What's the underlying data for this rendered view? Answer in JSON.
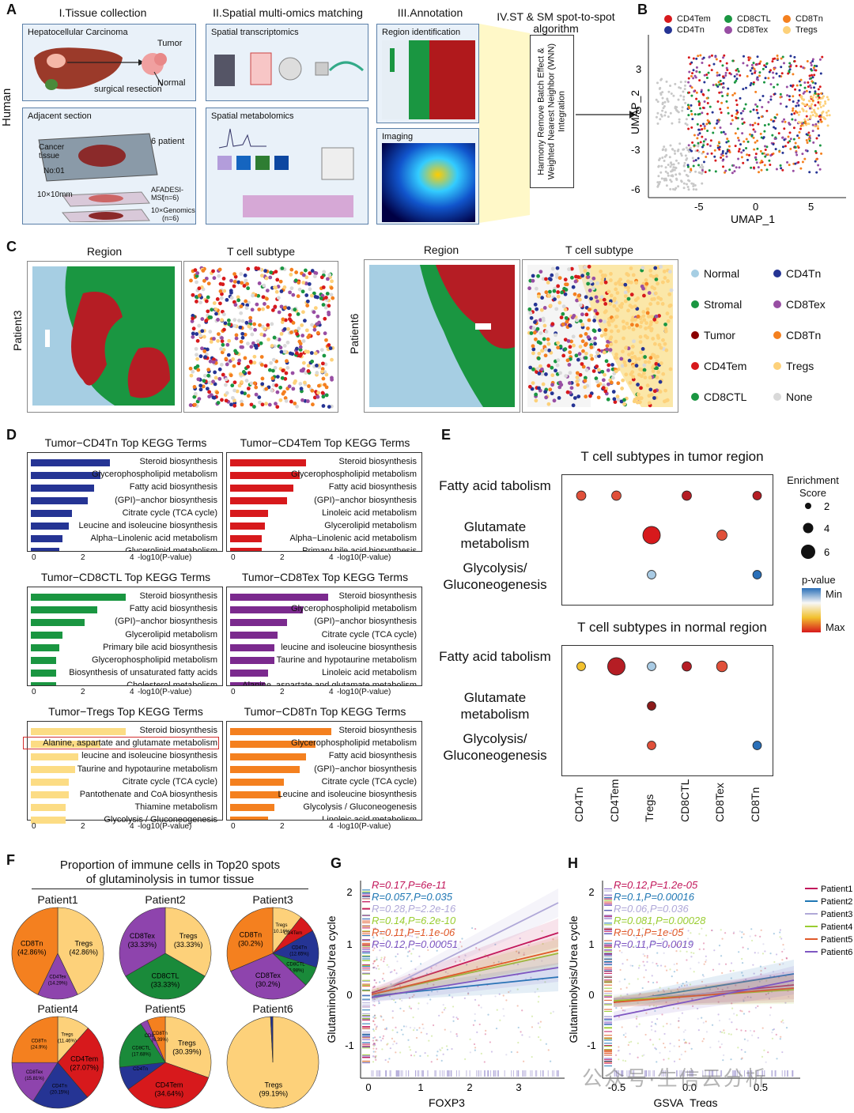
{
  "panelA": {
    "label": "A",
    "human": "Human",
    "s1": "I.Tissue collection",
    "s2": "II.Spatial multi-omics matching",
    "s3": "III.Annotation",
    "s4": "IV.ST & SM spot-to-spot algorithm",
    "hcc": "Hepatocellular Carcinoma",
    "tumor": "Tumor",
    "normal": "Normal",
    "resection": "surgical resection",
    "adjacent": "Adjacent section",
    "cancer_tissue": "Cancer tissue",
    "no01": "No:01",
    "patients": "6 patient",
    "size": "10×10mm",
    "afadesi": "AFADESI-MSI",
    "n6a": "(n=6)",
    "genomics": "10×Genomics",
    "n6b": "(n=6)",
    "spatial_tx": "Spatial transcriptomics",
    "spatial_met": "Spatial metabolomics",
    "region_id": "Region identification",
    "imaging": "Imaging",
    "harmony": "Harmony Remove Batch Effect & Weighted Nearest Neighbor (WNN) Integration"
  },
  "panelB": {
    "label": "B",
    "legend": [
      "CD4Tem",
      "CD8CTL",
      "CD8Tn",
      "CD4Tn",
      "CD8Tex",
      "Tregs"
    ],
    "colors": [
      "#d7191c",
      "#1a9641",
      "#f4801f",
      "#253494",
      "#984ea3",
      "#fdd17a"
    ],
    "xlabel": "UMAP_1",
    "ylabel": "UMAP_2",
    "xticks": [
      "-5",
      "0",
      "5"
    ],
    "yticks": [
      "3",
      "0",
      "-3",
      "-6"
    ]
  },
  "panelC": {
    "label": "C",
    "region": "Region",
    "tcell": "T cell subtype",
    "patient3": "Patient3",
    "patient6": "Patient6",
    "legend": [
      "Normal",
      "CD4Tn",
      "Stromal",
      "CD8Tex",
      "Tumor",
      "CD8Tn",
      "CD4Tem",
      "Tregs",
      "CD8CTL",
      "None"
    ],
    "legend_colors": [
      "#a6cee3",
      "#253494",
      "#1a9641",
      "#984ea3",
      "#8b0000",
      "#f4801f",
      "#d7191c",
      "#fdd17a",
      "#1a9641",
      "#d9d9d9"
    ]
  },
  "panelD": {
    "label": "D",
    "axis_label": "-log10(P-value)",
    "charts": [
      {
        "title": "Tumor−CD4Tn Top KEGG Terms",
        "color": "#253494",
        "ticks": [
          "0",
          "2",
          "4"
        ],
        "max": 5,
        "terms": [
          "Steroid biosynthesis",
          "Glycerophospholipid metabolism",
          "Fatty acid biosynthesis",
          "(GPI)−anchor biosynthesis",
          "Citrate cycle (TCA cycle)",
          "Leucine and isoleucine biosynthesis",
          "Alpha−Linolenic acid metabolism",
          "Glycerolipid metabolism"
        ],
        "values": [
          2.5,
          2.2,
          2.0,
          1.8,
          1.3,
          1.2,
          1.0,
          0.9
        ]
      },
      {
        "title": "Tumor−CD4Tem Top KEGG Terms",
        "color": "#d7191c",
        "ticks": [
          "0",
          "2",
          "4"
        ],
        "max": 5,
        "terms": [
          "Steroid biosynthesis",
          "Glycerophospholipid metabolism",
          "Fatty acid biosynthesis",
          "(GPI)−anchor biosynthesis",
          "Linoleic acid metabolism",
          "Glycerolipid metabolism",
          "Alpha−Linolenic acid metabolism",
          "Primary bile acid biosynthesis"
        ],
        "values": [
          2.4,
          2.2,
          2.0,
          1.8,
          1.2,
          1.1,
          1.0,
          1.0
        ]
      },
      {
        "title": "Tumor−CD8CTL Top KEGG Terms",
        "color": "#1a9641",
        "ticks": [
          "0",
          "2",
          "4"
        ],
        "max": 5,
        "terms": [
          "Steroid biosynthesis",
          "Fatty acid biosynthesis",
          "(GPI)−anchor biosynthesis",
          "Glycerolipid metabolism",
          "Primary bile acid biosynthesis",
          "Glycerophospholipid metabolism",
          "Biosynthesis of unsaturated fatty acids",
          "Cholesterol metabolism"
        ],
        "values": [
          3.0,
          2.1,
          1.7,
          1.0,
          0.9,
          0.8,
          0.8,
          0.8
        ]
      },
      {
        "title": "Tumor−CD8Tex Top KEGG Terms",
        "color": "#7b2a8e",
        "ticks": [
          "0",
          "2",
          "4"
        ],
        "max": 5,
        "terms": [
          "Steroid biosynthesis",
          "Glycerophospholipid metabolism",
          "(GPI)−anchor biosynthesis",
          "Citrate cycle (TCA cycle)",
          "leucine and isoleucine biosynthesis",
          "Taurine and hypotaurine metabolism",
          "Linoleic acid metabolism",
          "Alanine, aspartate and glutamate metabolism"
        ],
        "values": [
          3.1,
          2.3,
          1.8,
          1.5,
          1.4,
          1.4,
          1.2,
          1.1
        ]
      },
      {
        "title": "Tumor−Tregs  Top KEGG Terms",
        "color": "#fcdc84",
        "ticks": [
          "0",
          "2",
          "4"
        ],
        "max": 5,
        "terms": [
          "Steroid biosynthesis",
          "Alanine, aspartate and glutamate metabolism",
          "leucine and isoleucine biosynthesis",
          "Taurine and hypotaurine metabolism",
          "Citrate cycle (TCA cycle)",
          "Pantothenate and CoA biosynthesis",
          "Thiamine metabolism",
          "Glycolysis / Gluconeogenesis"
        ],
        "values": [
          3.0,
          2.2,
          1.5,
          1.4,
          1.2,
          1.2,
          1.1,
          1.1
        ]
      },
      {
        "title": "Tumor−CD8Tn Top KEGG Terms",
        "color": "#f4801f",
        "ticks": [
          "0",
          "2",
          "4"
        ],
        "max": 5,
        "terms": [
          "Steroid biosynthesis",
          "Glycerophospholipid metabolism",
          "Fatty acid biosynthesis",
          "(GPI)−anchor biosynthesis",
          "Citrate cycle (TCA cycle)",
          "Leucine and isoleucine biosynthesis",
          "Glycolysis / Gluconeogenesis",
          "Linoleic acid metabolism"
        ],
        "values": [
          3.2,
          2.7,
          2.4,
          2.2,
          1.7,
          1.6,
          1.4,
          1.2
        ]
      }
    ]
  },
  "panelE": {
    "label": "E",
    "tumor_title": "T cell subtypes in tumor region",
    "normal_title": "T cell subtypes in normal region",
    "rows": [
      "Fatty acid tabolism",
      "Glutamate metabolism",
      "Glycolysis/ Gluconeogenesis"
    ],
    "cols": [
      "CD4Tn",
      "CD4Tem",
      "Tregs",
      "CD8CTL",
      "CD8Tex",
      "CD8Tn"
    ],
    "enrich_title": "Enrichment Score",
    "enrich_vals": [
      "2",
      "4",
      "6"
    ],
    "pval_title": "p-value",
    "pmin": "Min",
    "pmax": "Max",
    "tumor_dots": [
      {
        "r": 0,
        "c": 0,
        "s": 3.5,
        "color": "#e0503a"
      },
      {
        "r": 0,
        "c": 1,
        "s": 3.5,
        "color": "#e0503a"
      },
      {
        "r": 0,
        "c": 3,
        "s": 3.5,
        "color": "#b51d24"
      },
      {
        "r": 0,
        "c": 5,
        "s": 3.2,
        "color": "#b51d24"
      },
      {
        "r": 1,
        "c": 2,
        "s": 6.5,
        "color": "#d7191c"
      },
      {
        "r": 1,
        "c": 4,
        "s": 3.8,
        "color": "#e0503a"
      },
      {
        "r": 2,
        "c": 2,
        "s": 3.2,
        "color": "#a9cbe4"
      },
      {
        "r": 2,
        "c": 5,
        "s": 3.2,
        "color": "#2a6fb8"
      }
    ],
    "normal_dots": [
      {
        "r": 0,
        "c": 0,
        "s": 3.2,
        "color": "#f2c12e"
      },
      {
        "r": 0,
        "c": 1,
        "s": 6.5,
        "color": "#b51d24"
      },
      {
        "r": 0,
        "c": 2,
        "s": 3.2,
        "color": "#a9cbe4"
      },
      {
        "r": 0,
        "c": 3,
        "s": 3.5,
        "color": "#b51d24"
      },
      {
        "r": 0,
        "c": 4,
        "s": 4.0,
        "color": "#e0503a"
      },
      {
        "r": 1,
        "c": 2,
        "s": 3.2,
        "color": "#8b1a1a"
      },
      {
        "r": 2,
        "c": 2,
        "s": 3.2,
        "color": "#e0503a"
      },
      {
        "r": 2,
        "c": 5,
        "s": 3.2,
        "color": "#2a6fb8"
      }
    ]
  },
  "panelF": {
    "label": "F",
    "title1": "Proportion of immune cells in Top20 spots",
    "title2": "of glutaminolysis in tumor tissue",
    "pies": [
      {
        "name": "Patient1",
        "slices": [
          {
            "label": "Tregs",
            "pct": "(42.86%)",
            "value": 42.86,
            "color": "#fdd17a"
          },
          {
            "label": "CD4Tex",
            "pct": "(14.29%)",
            "value": 14.29,
            "color": "#8e44ad"
          },
          {
            "label": "CD8Tn",
            "pct": "(42.86%)",
            "value": 42.86,
            "color": "#f4801f"
          }
        ]
      },
      {
        "name": "Patient2",
        "slices": [
          {
            "label": "Tregs",
            "pct": "(33.33%)",
            "value": 33.33,
            "color": "#fdd17a"
          },
          {
            "label": "CD8CTL",
            "pct": "(33.33%)",
            "value": 33.33,
            "color": "#1a8a3a"
          },
          {
            "label": "CD8Tex",
            "pct": "(33.33%)",
            "value": 33.34,
            "color": "#8e44ad"
          }
        ]
      },
      {
        "name": "Patient3",
        "slices": [
          {
            "label": "Tregs",
            "pct": "(10.16%)",
            "value": 10.16,
            "color": "#fdd17a"
          },
          {
            "label": "CD4Tem",
            "pct": "",
            "value": 6.0,
            "color": "#d7191c"
          },
          {
            "label": "CD4Tn",
            "pct": "(12.65%)",
            "value": 12.65,
            "color": "#253494"
          },
          {
            "label": "CD8CTL",
            "pct": "(6.98%)",
            "value": 6.98,
            "color": "#1a8a3a"
          },
          {
            "label": "CD8Tex",
            "pct": "(30.2%)",
            "value": 30.2,
            "color": "#8e44ad"
          },
          {
            "label": "CD8Tn",
            "pct": "(30.2%)",
            "value": 30.2,
            "color": "#f4801f"
          }
        ]
      },
      {
        "name": "Patient4",
        "slices": [
          {
            "label": "Tregs",
            "pct": "(11.46%)",
            "value": 11.46,
            "color": "#fdd17a"
          },
          {
            "label": "CD4Tem",
            "pct": "(27.07%)",
            "value": 27.07,
            "color": "#d7191c"
          },
          {
            "label": "CD4Tn",
            "pct": "(20.15%)",
            "value": 20.15,
            "color": "#253494"
          },
          {
            "label": "CD8Tex",
            "pct": "(15.81%)",
            "value": 15.81,
            "color": "#8e44ad"
          },
          {
            "label": "CD8Tn",
            "pct": "(24.9%)",
            "value": 24.9,
            "color": "#f4801f"
          }
        ]
      },
      {
        "name": "Patient5",
        "slices": [
          {
            "label": "Tregs",
            "pct": "(30.39%)",
            "value": 30.39,
            "color": "#fdd17a"
          },
          {
            "label": "CD4Tem",
            "pct": "(34.64%)",
            "value": 34.64,
            "color": "#d7191c"
          },
          {
            "label": "CD4Tn",
            "pct": "",
            "value": 8.3,
            "color": "#253494"
          },
          {
            "label": "CD8CTL",
            "pct": "(17.68%)",
            "value": 17.68,
            "color": "#1a8a3a"
          },
          {
            "label": "CD8Tex",
            "pct": "",
            "value": 2.6,
            "color": "#8e44ad"
          },
          {
            "label": "CD8Tn",
            "pct": "(6.39%)",
            "value": 6.39,
            "color": "#f4801f"
          }
        ]
      },
      {
        "name": "Patient6",
        "slices": [
          {
            "label": "Tregs",
            "pct": "(99.19%)",
            "value": 99.19,
            "color": "#fdd17a"
          },
          {
            "label": "",
            "pct": "",
            "value": 0.81,
            "color": "#253494"
          }
        ]
      }
    ]
  },
  "panelG": {
    "label": "G",
    "xlabel": "FOXP3",
    "ylabel": "Glutaminolysis/Urea cycle",
    "xticks": [
      "0",
      "1",
      "2",
      "3"
    ],
    "yticks": [
      "2",
      "1",
      "0",
      "-1"
    ],
    "stats": [
      {
        "text": "R=0.17,P=6e-11",
        "color": "#c2185b"
      },
      {
        "text": "R=0.057,P=0.035",
        "color": "#1f77b4"
      },
      {
        "text": "R=0.28,P=2.2e-16",
        "color": "#b0a8d8"
      },
      {
        "text": "R=0.14,P=6.2e-10",
        "color": "#9acd32"
      },
      {
        "text": "R=0.11,P=1.1e-06",
        "color": "#e05a2a"
      },
      {
        "text": "R=0.12,P=0.00051",
        "color": "#7e57c2"
      }
    ]
  },
  "panelH": {
    "label": "H",
    "xlabel": "GSVA_Tregs",
    "ylabel": "Glutaminolysis/Urea cycle",
    "xticks": [
      "-0.5",
      "0.0",
      "0.5"
    ],
    "yticks": [
      "2",
      "1",
      "0",
      "-1"
    ],
    "stats": [
      {
        "text": "R=0.12,P=1.2e-05",
        "color": "#c2185b"
      },
      {
        "text": "R=0.1,P=0.00016",
        "color": "#1f77b4"
      },
      {
        "text": "R=0.06,P=0.036",
        "color": "#b0a8d8"
      },
      {
        "text": "R=0.081,P=0.00028",
        "color": "#9acd32"
      },
      {
        "text": "R=0.1,P=1e-05",
        "color": "#e05a2a"
      },
      {
        "text": "R=0.11,P=0.0019",
        "color": "#7e57c2"
      }
    ],
    "legend": [
      "Patient1",
      "Patient2",
      "Patient3",
      "Patient4",
      "Patient5",
      "Patient6"
    ],
    "legend_colors": [
      "#c2185b",
      "#1f77b4",
      "#b0a8d8",
      "#9acd32",
      "#e05a2a",
      "#7e57c2"
    ]
  },
  "watermark": "公众号·生信云分析"
}
